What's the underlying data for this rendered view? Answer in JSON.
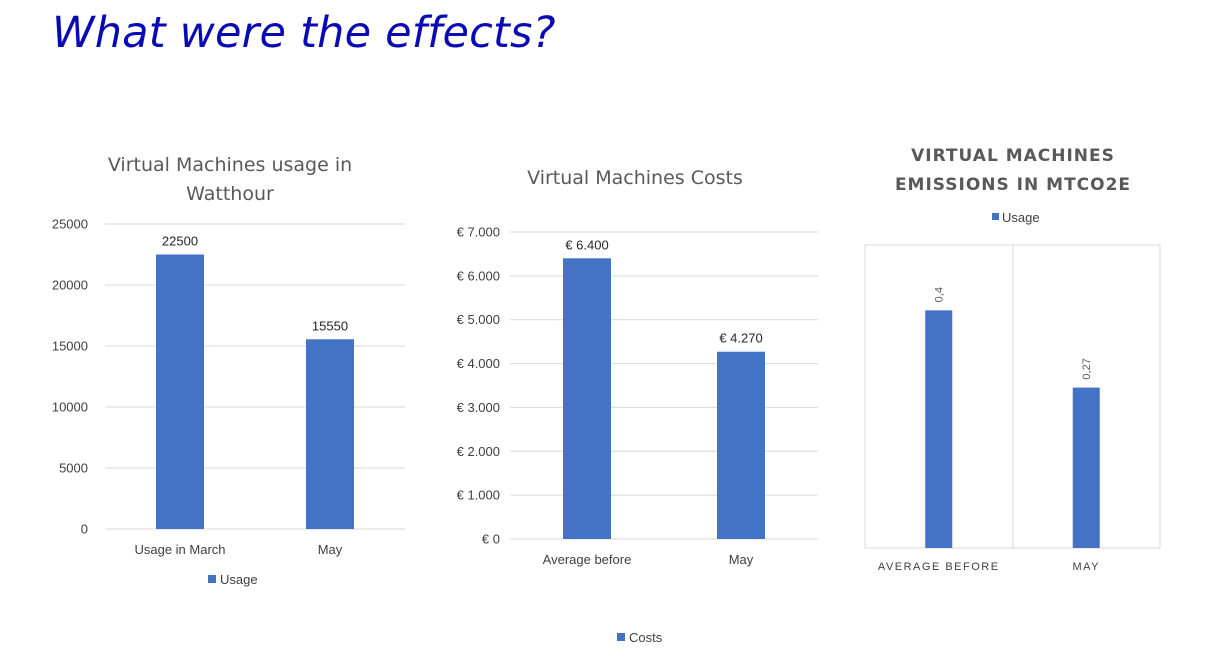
{
  "slide": {
    "title": "What were the effects?"
  },
  "colors": {
    "title": "#0a0ab4",
    "bar": "#4472c4",
    "grid": "#d9d9d9"
  },
  "chart_data": [
    {
      "type": "bar",
      "title": [
        "Virtual Machines usage in",
        "Watthour"
      ],
      "categories": [
        "Usage in March",
        "May"
      ],
      "series": [
        {
          "name": "Usage",
          "values": [
            22500,
            15550
          ]
        }
      ],
      "data_labels": [
        "22500",
        "15550"
      ],
      "ylim": [
        0,
        25000
      ],
      "yticks": [
        0,
        5000,
        10000,
        15000,
        20000,
        25000
      ],
      "ytick_labels": [
        "0",
        "5000",
        "10000",
        "15000",
        "20000",
        "25000"
      ],
      "legend": "bottom"
    },
    {
      "type": "bar",
      "title": [
        "Virtual Machines Costs"
      ],
      "categories": [
        "Average before",
        "May"
      ],
      "series": [
        {
          "name": "Costs",
          "values": [
            6400,
            4270
          ]
        }
      ],
      "data_labels": [
        "€ 6.400",
        "€ 4.270"
      ],
      "ylim": [
        0,
        7000
      ],
      "yticks": [
        0,
        1000,
        2000,
        3000,
        4000,
        5000,
        6000,
        7000
      ],
      "ytick_labels": [
        "€ 0",
        "€ 1.000",
        "€ 2.000",
        "€ 3.000",
        "€ 4.000",
        "€ 5.000",
        "€ 6.000",
        "€ 7.000"
      ],
      "legend": "bottom"
    },
    {
      "type": "bar",
      "title": [
        "VIRTUAL MACHINES",
        "EMISSIONS IN MTCO2E"
      ],
      "categories": [
        "AVERAGE BEFORE",
        "MAY"
      ],
      "series": [
        {
          "name": "Usage",
          "values": [
            0.4,
            0.27
          ]
        }
      ],
      "data_labels": [
        "0,4",
        "0,27"
      ],
      "ylim": [
        0,
        0.51
      ],
      "legend": "top"
    }
  ]
}
